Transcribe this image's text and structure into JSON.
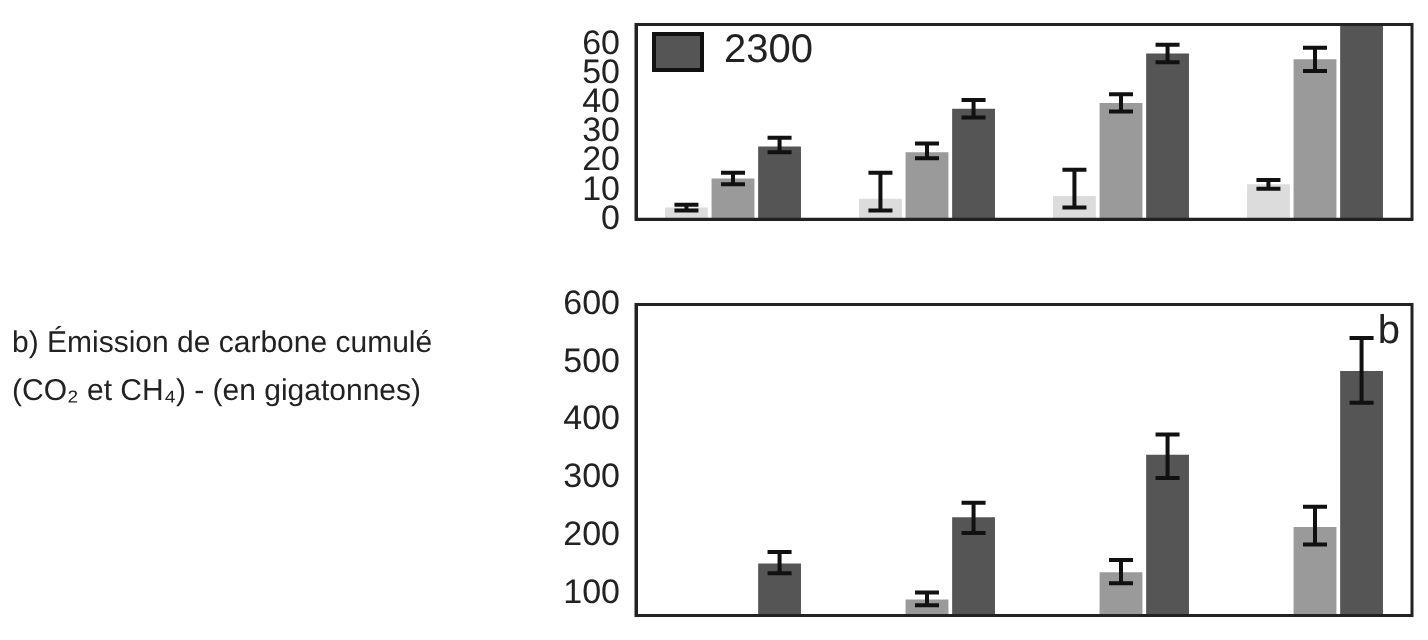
{
  "chart_data": [
    {
      "type": "bar",
      "categories": [
        null,
        null,
        null,
        null
      ],
      "ylim": [
        0,
        67
      ],
      "yticks": [
        0,
        10,
        20,
        30,
        40,
        50,
        60
      ],
      "grid": false,
      "legend": "top left",
      "series": [
        {
          "color": "#dcdcdc",
          "values": [
            4,
            7,
            8,
            12
          ],
          "errors": [
            [
              3,
              5
            ],
            [
              3,
              16
            ],
            [
              4,
              17
            ],
            [
              10.5,
              13.5
            ]
          ]
        },
        {
          "color": "#9a9a9a",
          "values": [
            14,
            23,
            40,
            55
          ],
          "errors": [
            [
              12,
              16
            ],
            [
              21,
              26
            ],
            [
              37,
              43
            ],
            [
              51,
              59
            ]
          ]
        },
        {
          "name": "2300",
          "color": "#555555",
          "values": [
            25,
            38,
            57,
            67
          ],
          "errors": [
            [
              23,
              28
            ],
            [
              35,
              41
            ],
            [
              54,
              60
            ],
            null
          ]
        }
      ]
    },
    {
      "type": "bar",
      "categories": [
        null,
        null,
        null,
        null
      ],
      "ylim": [
        62,
        600
      ],
      "yticks": [
        100,
        200,
        300,
        400,
        500,
        600
      ],
      "grid": false,
      "legend": false,
      "tick_labels": "y",
      "ylabel": "b) Émission de carbone cumulé (CO₂ et CH₄) - (en gigatonnes)",
      "annotations": [
        "b"
      ],
      "series": [
        {
          "color": "#dcdcdc",
          "values": [
            null,
            null,
            null,
            null
          ]
        },
        {
          "color": "#9a9a9a",
          "values": [
            null,
            90,
            137,
            215
          ],
          "errors": [
            null,
            [
              80,
              102
            ],
            [
              118,
              158
            ],
            [
              185,
              250
            ]
          ]
        },
        {
          "color": "#555555",
          "values": [
            152,
            232,
            340,
            485
          ],
          "errors": [
            [
              135,
              172
            ],
            [
              205,
              257
            ],
            [
              300,
              375
            ],
            [
              430,
              542
            ]
          ]
        }
      ]
    }
  ]
}
